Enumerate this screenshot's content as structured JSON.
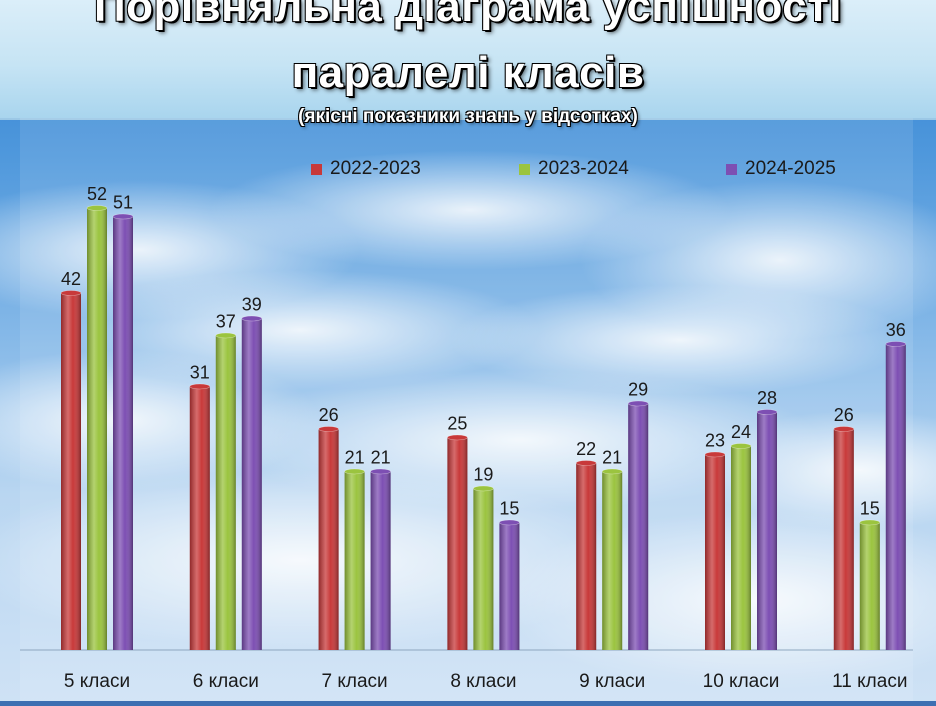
{
  "title_line_1": "Порівняльна діаграма успішності",
  "title_line_2": "паралелі  класів",
  "subtitle": "(якісні показники знань у відсотках)",
  "colors": {
    "series_1": "#c8393a",
    "series_2": "#9bc43f",
    "series_3": "#7d4fb3"
  },
  "chart_data": {
    "type": "bar",
    "title": "Порівняльна діаграма успішності паралелі  класів",
    "subtitle": "(якісні показники знань у відсотках)",
    "categories": [
      "5 класи",
      "6 класи",
      "7 класи",
      "8 класи",
      "9 класи",
      "10 класи",
      "11 класи"
    ],
    "series": [
      {
        "name": "2022-2023",
        "values": [
          42,
          31,
          26,
          25,
          22,
          23,
          26
        ]
      },
      {
        "name": "2023-2024",
        "values": [
          52,
          37,
          21,
          19,
          21,
          24,
          15
        ]
      },
      {
        "name": "2024-2025",
        "values": [
          51,
          39,
          21,
          15,
          29,
          28,
          36
        ]
      }
    ],
    "xlabel": "",
    "ylabel": "",
    "ylim": [
      0,
      60
    ],
    "grid": false,
    "legend": "top",
    "data_labels": true
  }
}
